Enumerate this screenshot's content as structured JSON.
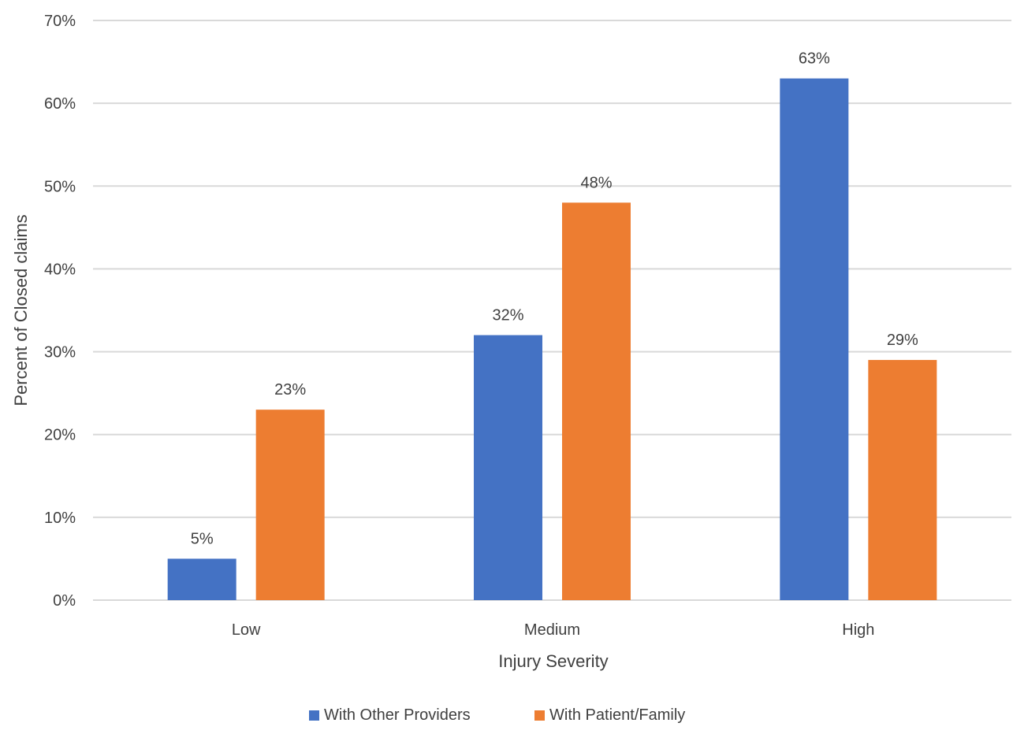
{
  "chart_data": {
    "type": "bar",
    "title": "",
    "xlabel": "Injury Severity",
    "ylabel": "Percent of Closed claims",
    "categories": [
      "Low",
      "Medium",
      "High"
    ],
    "series": [
      {
        "name": "With Other Providers",
        "values": [
          5,
          32,
          63
        ],
        "labels": [
          "5%",
          "32%",
          "63%"
        ],
        "color": "#4472C4"
      },
      {
        "name": "With Patient/Family",
        "values": [
          23,
          48,
          29
        ],
        "labels": [
          "23%",
          "48%",
          "29%"
        ],
        "color": "#ED7D31"
      }
    ],
    "ylim": [
      0,
      70
    ],
    "yticks": [
      0,
      10,
      20,
      30,
      40,
      50,
      60,
      70
    ],
    "ytick_labels": [
      "0%",
      "10%",
      "20%",
      "30%",
      "40%",
      "50%",
      "60%",
      "70%"
    ],
    "grid": true,
    "legend": "bottom"
  },
  "colors": {
    "grid": "#D9D9D9",
    "text": "#404040"
  }
}
